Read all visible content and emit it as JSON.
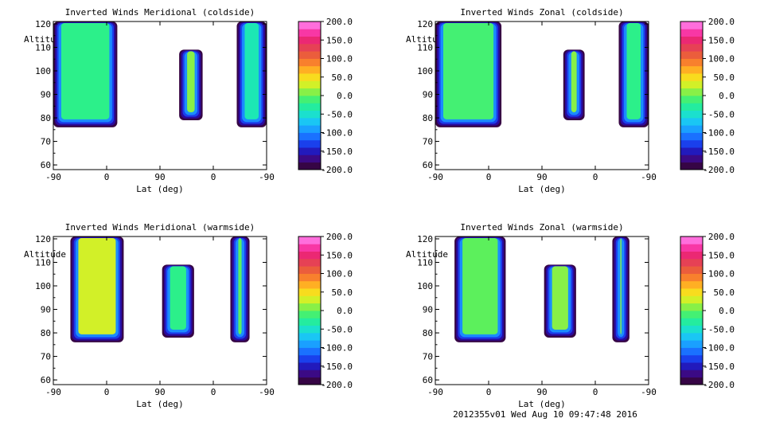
{
  "footer": "2012355v01 Wed Aug 10 09:47:48 2016",
  "chart_data": [
    {
      "type": "heatmap",
      "title": "Inverted Winds Meridional (coldside)",
      "xlabel": "Lat (deg)",
      "ylabel": "Altitude (km)",
      "xticks": [
        "-90",
        "0",
        "90",
        "0",
        "-90"
      ],
      "yticks": [
        60,
        70,
        80,
        90,
        100,
        110,
        120
      ],
      "ylim": [
        58,
        121
      ],
      "colorbar": {
        "range": [
          -200,
          200
        ],
        "ticks": [
          "200.0",
          "150.0",
          "100.0",
          "50.0",
          "0.0",
          "-50.0",
          "-100.0",
          "-150.0",
          "-200.0"
        ]
      },
      "blocks": [
        {
          "x_start": 0.0,
          "x_end": 0.3,
          "alt_bottom": 76,
          "alt_top": 121,
          "value": -20
        },
        {
          "x_start": 0.59,
          "x_end": 0.7,
          "alt_bottom": 79,
          "alt_top": 109,
          "value": 10
        },
        {
          "x_start": 0.86,
          "x_end": 1.0,
          "alt_bottom": 76,
          "alt_top": 121,
          "value": -40
        }
      ]
    },
    {
      "type": "heatmap",
      "title": "Inverted Winds Zonal (coldside)",
      "xlabel": "Lat (deg)",
      "ylabel": "Altitude (km)",
      "xticks": [
        "-90",
        "0",
        "90",
        "0",
        "-90"
      ],
      "yticks": [
        60,
        70,
        80,
        90,
        100,
        110,
        120
      ],
      "ylim": [
        58,
        121
      ],
      "colorbar": {
        "range": [
          -200,
          200
        ],
        "ticks": [
          "200.0",
          "150.0",
          "100.0",
          "50.0",
          "0.0",
          "-50.0",
          "-100.0",
          "-150.0",
          "-200.0"
        ]
      },
      "blocks": [
        {
          "x_start": 0.0,
          "x_end": 0.31,
          "alt_bottom": 76,
          "alt_top": 121,
          "value": -10
        },
        {
          "x_start": 0.6,
          "x_end": 0.7,
          "alt_bottom": 79,
          "alt_top": 109,
          "value": 10
        },
        {
          "x_start": 0.86,
          "x_end": 1.0,
          "alt_bottom": 76,
          "alt_top": 121,
          "value": -20
        }
      ]
    },
    {
      "type": "heatmap",
      "title": "Inverted Winds Meridional (warmside)",
      "xlabel": "Lat (deg)",
      "ylabel": "Altitude (km)",
      "xticks": [
        "-90",
        "0",
        "90",
        "0",
        "-90"
      ],
      "yticks": [
        60,
        70,
        80,
        90,
        100,
        110,
        120
      ],
      "ylim": [
        58,
        121
      ],
      "colorbar": {
        "range": [
          -200,
          200
        ],
        "ticks": [
          "200.0",
          "150.0",
          "100.0",
          "50.0",
          "0.0",
          "-50.0",
          "-100.0",
          "-150.0",
          "-200.0"
        ]
      },
      "blocks": [
        {
          "x_start": 0.08,
          "x_end": 0.33,
          "alt_bottom": 76,
          "alt_top": 121,
          "value": 30
        },
        {
          "x_start": 0.51,
          "x_end": 0.66,
          "alt_bottom": 78,
          "alt_top": 109,
          "value": -20
        },
        {
          "x_start": 0.83,
          "x_end": 0.92,
          "alt_bottom": 76,
          "alt_top": 121,
          "value": 0
        }
      ]
    },
    {
      "type": "heatmap",
      "title": "Inverted Winds Zonal (warmside)",
      "xlabel": "Lat (deg)",
      "ylabel": "Altitude (km)",
      "xticks": [
        "-90",
        "0",
        "90",
        "0",
        "-90"
      ],
      "yticks": [
        60,
        70,
        80,
        90,
        100,
        110,
        120
      ],
      "ylim": [
        58,
        121
      ],
      "colorbar": {
        "range": [
          -200,
          200
        ],
        "ticks": [
          "200.0",
          "150.0",
          "100.0",
          "50.0",
          "0.0",
          "-50.0",
          "-100.0",
          "-150.0",
          "-200.0"
        ]
      },
      "blocks": [
        {
          "x_start": 0.09,
          "x_end": 0.33,
          "alt_bottom": 76,
          "alt_top": 121,
          "value": 0
        },
        {
          "x_start": 0.51,
          "x_end": 0.66,
          "alt_bottom": 78,
          "alt_top": 109,
          "value": 10
        },
        {
          "x_start": 0.83,
          "x_end": 0.91,
          "alt_bottom": 76,
          "alt_top": 121,
          "value": 10
        }
      ]
    }
  ]
}
